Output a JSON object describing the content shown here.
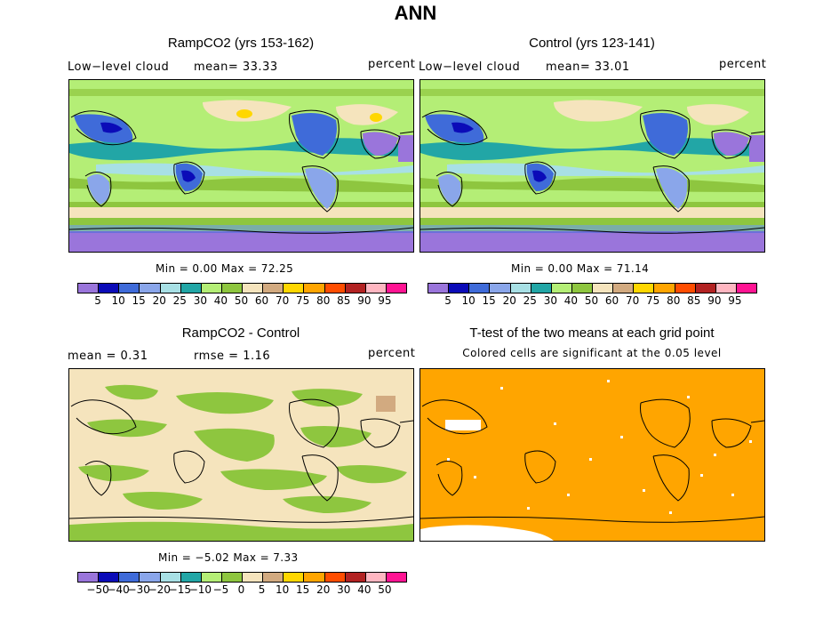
{
  "title": "ANN",
  "panels": {
    "ramp": {
      "title": "RampCO2 (yrs 153-162)",
      "label": "Low−level cloud",
      "mean": "mean=  33.33",
      "units": "percent",
      "stats": "Min =    0.00 Max =  72.25"
    },
    "control": {
      "title": "Control (yrs 123-141)",
      "label": "Low−level cloud",
      "mean": "mean=  33.01",
      "units": "percent",
      "stats": "Min =    0.00 Max =  71.14"
    },
    "diff": {
      "title": "RampCO2 - Control",
      "mean": "mean =    0.31",
      "rmse": "rmse =    1.16",
      "units": "percent",
      "stats": "Min =  −5.02 Max =    7.33"
    },
    "ttest": {
      "title": "T-test of the two means at each grid point",
      "subtitle": "Colored cells are significant at the 0.05 level",
      "fill_color": "#ffa500"
    }
  },
  "colorbar_abs": {
    "colors": [
      "#9a75db",
      "#0b0bb8",
      "#3f6bd9",
      "#8aa6ea",
      "#a8e0e5",
      "#22a6a6",
      "#b4ee76",
      "#8ec63f",
      "#f5e4bd",
      "#d2aa80",
      "#ffd700",
      "#ffa500",
      "#ff4d00",
      "#b22222",
      "#ffb6c1",
      "#ff1493"
    ],
    "labels": [
      "5",
      "10",
      "15",
      "20",
      "25",
      "30",
      "40",
      "50",
      "60",
      "70",
      "75",
      "80",
      "85",
      "90",
      "95"
    ]
  },
  "colorbar_diff": {
    "colors": [
      "#9a75db",
      "#0b0bb8",
      "#3f6bd9",
      "#8aa6ea",
      "#a8e0e5",
      "#22a6a6",
      "#b4ee76",
      "#8ec63f",
      "#f5e4bd",
      "#d2aa80",
      "#ffd700",
      "#ffa500",
      "#ff4d00",
      "#b22222",
      "#ffb6c1",
      "#ff1493"
    ],
    "labels": [
      "−50",
      "−40",
      "−30",
      "−20",
      "−15",
      "−10",
      "−5",
      "0",
      "5",
      "10",
      "15",
      "20",
      "30",
      "40",
      "50"
    ]
  }
}
